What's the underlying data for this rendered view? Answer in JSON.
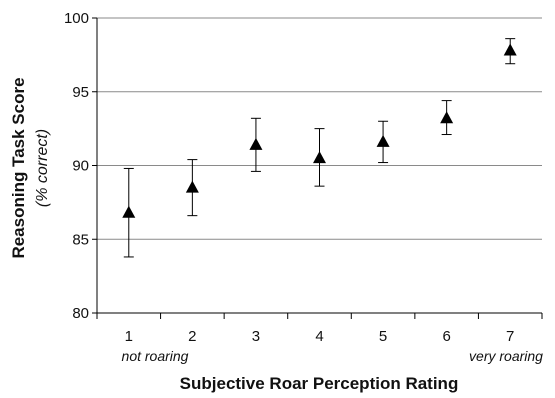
{
  "chart_data": {
    "type": "scatter",
    "title": "",
    "xlabel": "Subjective Roar Perception Rating",
    "ylabel": "Reasoning Task Score",
    "ylabel_sub": "(% correct)",
    "x_anchor_low": "not roaring",
    "x_anchor_high": "very roaring",
    "categories": [
      "1",
      "2",
      "3",
      "4",
      "5",
      "6",
      "7"
    ],
    "ylim": [
      80,
      100
    ],
    "yticks": [
      "80",
      "85",
      "90",
      "95",
      "100"
    ],
    "grid": true,
    "marker": "triangle",
    "series": [
      {
        "values": [
          86.8,
          88.5,
          91.4,
          90.5,
          91.6,
          93.2,
          97.8
        ],
        "error_upper": [
          89.8,
          90.4,
          93.2,
          92.5,
          93.0,
          94.4,
          98.6
        ],
        "error_lower": [
          83.8,
          86.6,
          89.6,
          88.6,
          90.2,
          92.1,
          96.9
        ]
      }
    ]
  }
}
